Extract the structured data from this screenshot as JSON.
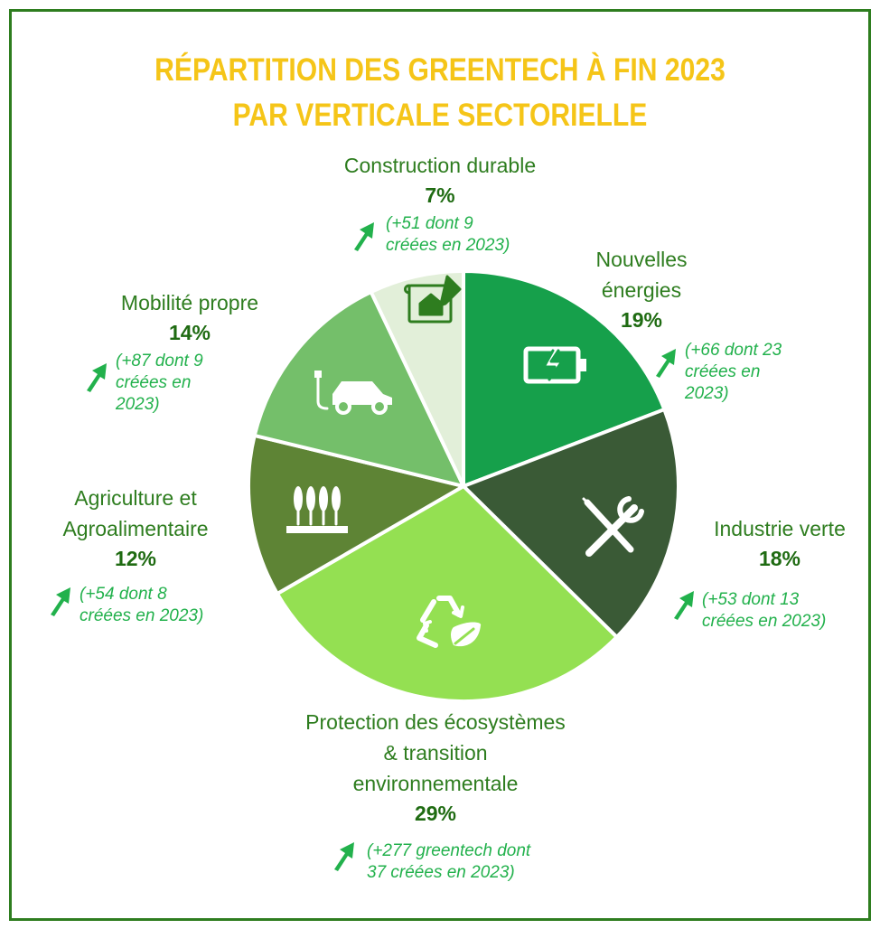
{
  "title_line1": "RÉPARTITION DES GREENTECH À FIN 2023",
  "title_line2": "PAR VERTICALE SECTORIELLE",
  "colors": {
    "frame": "#2e7d1f",
    "title": "#f5c518",
    "label": "#2e7d1f",
    "note": "#22b14c"
  },
  "chart_data": {
    "type": "pie",
    "start_angle_deg": 0,
    "direction": "clockwise",
    "slices": [
      {
        "name": "Nouvelles\nénergies",
        "value": 19,
        "pct_label": "19%",
        "note": "(+66 dont 23\ncréées en\n2023)",
        "color": "#16a04b",
        "icon": "battery-icon"
      },
      {
        "name": "Industrie verte",
        "value": 18,
        "pct_label": "18%",
        "note": "(+53 dont 13\ncréées en 2023)",
        "color": "#3a5a36",
        "icon": "tools-icon"
      },
      {
        "name": "Protection des écosystèmes\n& transition\nenvironnementale",
        "value": 29,
        "pct_label": "29%",
        "note": "(+277 greentech dont\n37 créées en 2023)",
        "color": "#94e052",
        "icon": "recycle-icon"
      },
      {
        "name": "Agriculture et\nAgroalimentaire",
        "value": 12,
        "pct_label": "12%",
        "note": "(+54 dont 8\ncréées en 2023)",
        "color": "#5e8435",
        "icon": "wheat-icon"
      },
      {
        "name": "Mobilité propre",
        "value": 14,
        "pct_label": "14%",
        "note": "(+87 dont 9\ncréées en\n2023)",
        "color": "#74bf6a",
        "icon": "electric-car-icon"
      },
      {
        "name": "Construction durable",
        "value": 7,
        "pct_label": "7%",
        "note": "(+51 dont 9\ncréées en 2023)",
        "color": "#e2efd9",
        "icon": "house-plan-icon"
      }
    ]
  }
}
